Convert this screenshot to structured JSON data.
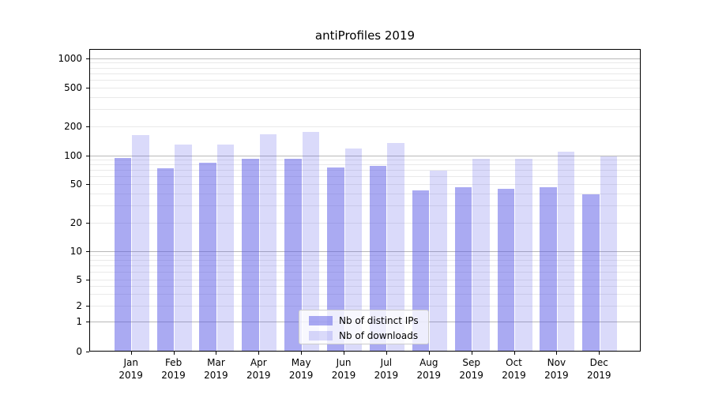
{
  "title": "antiProfiles 2019",
  "chart_data": {
    "type": "bar",
    "title": "antiProfiles 2019",
    "xlabel": "",
    "ylabel": "",
    "yscale": "symlog",
    "categories": [
      "Jan",
      "Feb",
      "Mar",
      "Apr",
      "May",
      "Jun",
      "Jul",
      "Aug",
      "Sep",
      "Oct",
      "Nov",
      "Dec"
    ],
    "category_year": "2019",
    "series": [
      {
        "name": "Nb of distinct IPs",
        "values": [
          94,
          73,
          84,
          92,
          92,
          75,
          77,
          43,
          46,
          45,
          46,
          39
        ]
      },
      {
        "name": "Nb of downloads",
        "values": [
          162,
          130,
          129,
          164,
          175,
          117,
          133,
          69,
          92,
          91,
          108,
          98
        ]
      }
    ],
    "yticks": [
      0,
      1,
      2,
      5,
      10,
      20,
      50,
      100,
      200,
      500,
      1000
    ],
    "ylim": [
      0,
      1250
    ],
    "grid": {
      "major": [
        1,
        10,
        100,
        1000
      ],
      "minor": [
        2,
        3,
        4,
        5,
        6,
        7,
        8,
        9,
        20,
        30,
        40,
        50,
        60,
        70,
        80,
        90,
        200,
        300,
        400,
        500,
        600,
        700,
        800,
        900
      ]
    },
    "legend_position": "lower center"
  },
  "legend": {
    "items": [
      {
        "label": "Nb of distinct IPs"
      },
      {
        "label": "Nb of downloads"
      }
    ]
  },
  "colors": {
    "bar_distinct_ips": "rgba(85,85,230,0.50)",
    "bar_downloads": "rgba(85,85,230,0.22)",
    "grid_major": "#b8b8b8",
    "grid_minor": "#e9e9e9",
    "spine": "#000000",
    "background": "#ffffff",
    "text": "#000000",
    "legend_border": "#cccccc"
  }
}
